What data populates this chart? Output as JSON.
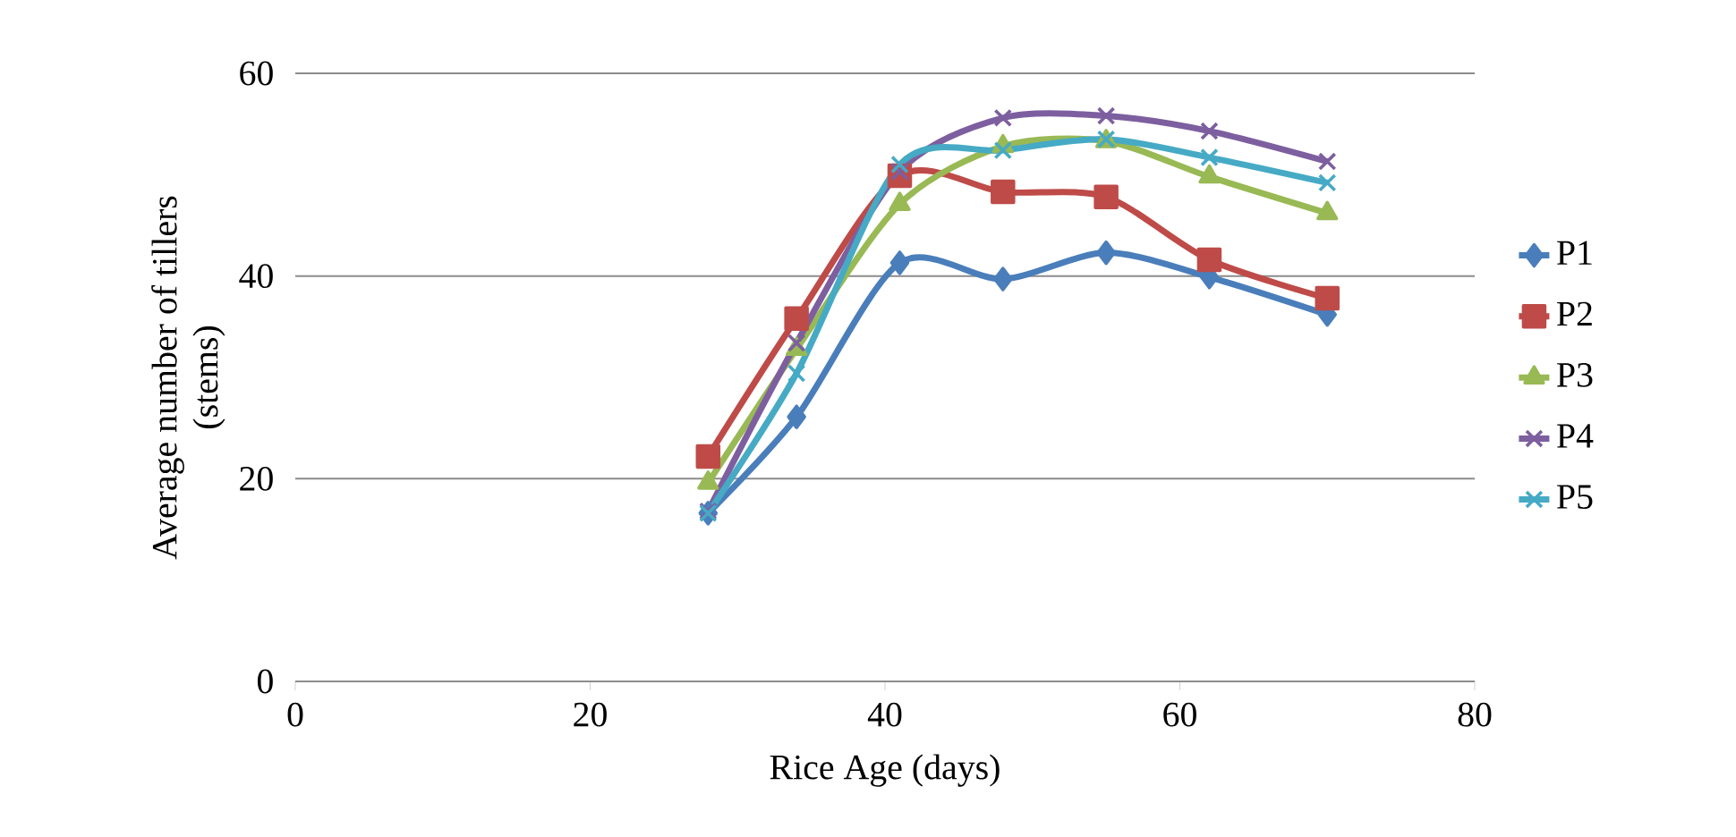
{
  "chart_data": {
    "type": "line",
    "xlabel": "Rice Age (days)",
    "ylabel": "Average number of tillers (stems)",
    "x": [
      28,
      34,
      41,
      48,
      55,
      62,
      70
    ],
    "series": [
      {
        "name": "P1",
        "color": "#4a7ebb",
        "marker": "diamond",
        "values": [
          16.6,
          26.1,
          41.3,
          39.7,
          42.3,
          39.9,
          36.2
        ]
      },
      {
        "name": "P2",
        "color": "#be4b48",
        "marker": "square",
        "values": [
          22.2,
          35.8,
          49.9,
          48.3,
          47.8,
          41.6,
          37.8
        ]
      },
      {
        "name": "P3",
        "color": "#98b954",
        "marker": "triangle",
        "values": [
          19.6,
          32.8,
          47.1,
          52.8,
          53.3,
          49.8,
          46.2
        ]
      },
      {
        "name": "P4",
        "color": "#7d5fa0",
        "marker": "cross",
        "values": [
          16.8,
          33.4,
          50.3,
          55.6,
          55.8,
          54.3,
          51.3
        ]
      },
      {
        "name": "P5",
        "color": "#46aac5",
        "marker": "cross",
        "values": [
          16.6,
          30.4,
          51.0,
          52.4,
          53.5,
          51.7,
          49.2
        ]
      }
    ],
    "xlim": [
      0,
      80
    ],
    "ylim": [
      0,
      60
    ],
    "xticks": [
      0,
      20,
      40,
      60,
      80
    ],
    "yticks": [
      0,
      20,
      40,
      60
    ],
    "grid": "y",
    "legend": "right"
  }
}
